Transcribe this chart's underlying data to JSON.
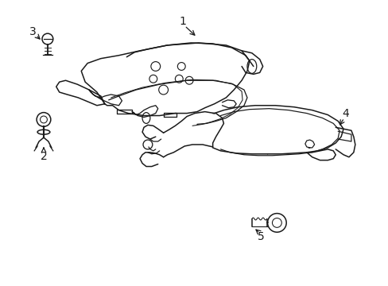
{
  "background_color": "#ffffff",
  "line_color": "#1a1a1a",
  "line_width": 1.1,
  "label_fontsize": 10,
  "figsize": [
    4.89,
    3.6
  ],
  "dpi": 100
}
